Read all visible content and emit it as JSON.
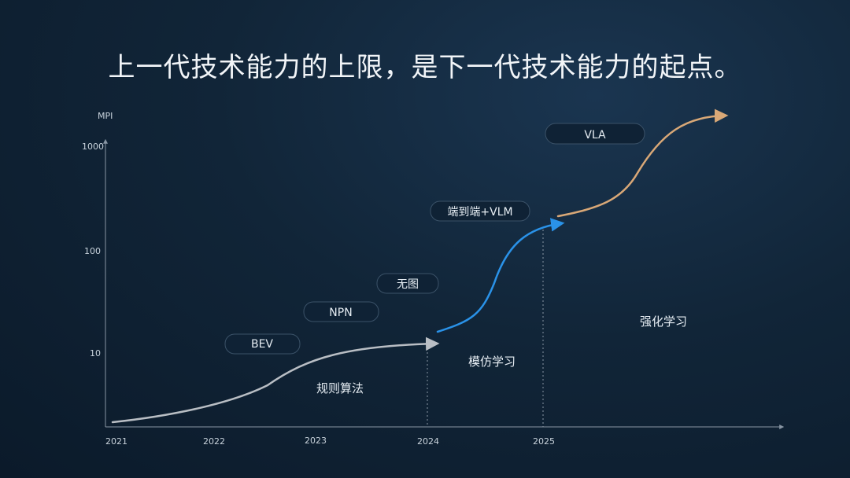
{
  "title": "上一代技术能力的上限，是下一代技术能力的起点。",
  "chart_data": {
    "type": "line",
    "ylabel": "MPI",
    "yscale": "log",
    "yticks": [
      "10",
      "100",
      "1000"
    ],
    "xticks": [
      "2021",
      "2022",
      "2023",
      "2024",
      "2025"
    ],
    "series": [
      {
        "name": "规则算法",
        "color": "#b9bec4",
        "points": [
          [
            2021.0,
            1.5
          ],
          [
            2021.9,
            2.6
          ],
          [
            2022.6,
            5.5
          ],
          [
            2023.0,
            8.8
          ],
          [
            2023.7,
            11.5
          ],
          [
            2024.1,
            12.5
          ]
        ]
      },
      {
        "name": "模仿学习",
        "color": "#2a92e8",
        "points": [
          [
            2024.1,
            17
          ],
          [
            2024.45,
            28
          ],
          [
            2024.65,
            70
          ],
          [
            2024.85,
            140
          ],
          [
            2025.2,
            185
          ]
        ]
      },
      {
        "name": "强化学习",
        "color": "#d9a877",
        "points": [
          [
            2025.15,
            220
          ],
          [
            2025.6,
            320
          ],
          [
            2025.95,
            700
          ],
          [
            2026.2,
            1400
          ],
          [
            2026.7,
            1750
          ]
        ]
      }
    ],
    "milestones": [
      "BEV",
      "NPN",
      "无图",
      "端到端+VLM",
      "VLA"
    ],
    "dividers": [
      "2024",
      "2025"
    ]
  }
}
